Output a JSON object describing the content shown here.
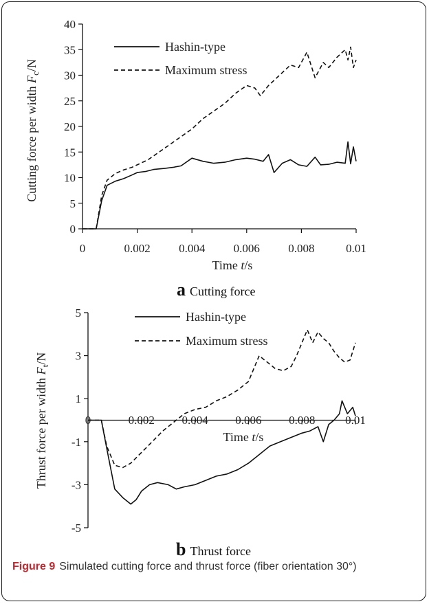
{
  "caption": {
    "label": "Figure 9",
    "text": "Simulated cutting force and thrust force (fiber orientation 30°)"
  },
  "chart_data": [
    {
      "type": "line",
      "panel_letter": "a",
      "panel_title": "Cutting force",
      "xlabel": "Time t/s",
      "ylabel": "Cutting force per width Fc/N",
      "xlim": [
        0,
        0.01
      ],
      "ylim": [
        0,
        40
      ],
      "x_ticks": [
        "0",
        "0.002",
        "0.004",
        "0.006",
        "0.008",
        "0.01"
      ],
      "y_ticks": [
        "0",
        "5",
        "10",
        "15",
        "20",
        "25",
        "30",
        "35",
        "40"
      ],
      "grid": false,
      "legend_placement": "top-left",
      "series": [
        {
          "name": "Hashin-type",
          "style": "solid",
          "x": [
            0,
            0.0005,
            0.0007,
            0.0009,
            0.0012,
            0.0015,
            0.0018,
            0.002,
            0.0023,
            0.0026,
            0.003,
            0.0033,
            0.0036,
            0.004,
            0.0044,
            0.0048,
            0.0052,
            0.0056,
            0.006,
            0.0063,
            0.0066,
            0.0068,
            0.007,
            0.0073,
            0.0076,
            0.0079,
            0.0082,
            0.0085,
            0.0087,
            0.009,
            0.0093,
            0.0096,
            0.0097,
            0.0098,
            0.0099,
            0.01
          ],
          "y": [
            0,
            0,
            5.5,
            8.5,
            9.3,
            9.8,
            10.5,
            11,
            11.2,
            11.6,
            11.8,
            12,
            12.3,
            13.8,
            13.2,
            12.8,
            13,
            13.5,
            13.8,
            13.6,
            13.2,
            14.5,
            11,
            12.8,
            13.5,
            12.5,
            12.2,
            14,
            12.5,
            12.6,
            13,
            12.8,
            17,
            12.7,
            16,
            13.2
          ]
        },
        {
          "name": "Maximum stress",
          "style": "dashed",
          "x": [
            0,
            0.0005,
            0.0007,
            0.0009,
            0.0012,
            0.0015,
            0.0018,
            0.002,
            0.0024,
            0.0028,
            0.0032,
            0.0036,
            0.004,
            0.0044,
            0.0048,
            0.0052,
            0.0056,
            0.006,
            0.0063,
            0.0065,
            0.0068,
            0.007,
            0.0073,
            0.0076,
            0.0079,
            0.0082,
            0.0085,
            0.0088,
            0.009,
            0.0093,
            0.0096,
            0.0097,
            0.0098,
            0.0099,
            0.01
          ],
          "y": [
            0,
            0,
            6.5,
            9.5,
            10.8,
            11.5,
            12,
            12.5,
            13.5,
            15,
            16.5,
            18,
            19.5,
            21.5,
            23,
            24.5,
            26.5,
            28,
            27.5,
            26,
            28,
            29,
            30.5,
            32,
            31.5,
            34.5,
            29.5,
            32.5,
            31.5,
            33.5,
            35,
            33,
            35.5,
            31.5,
            33
          ]
        }
      ]
    },
    {
      "type": "line",
      "panel_letter": "b",
      "panel_title": "Thrust force",
      "xlabel": "Time t/s",
      "ylabel": "Thrust  force per width Ft/N",
      "xlim": [
        0,
        0.01
      ],
      "ylim": [
        -5,
        5
      ],
      "x_ticks": [
        "0",
        "0.002",
        "0.004",
        "0.006",
        "0.008",
        "0.01"
      ],
      "y_ticks": [
        "-5",
        "-3",
        "-1",
        "1",
        "3",
        "5"
      ],
      "grid": false,
      "legend_placement": "top-left",
      "series": [
        {
          "name": "Hashin-type",
          "style": "solid",
          "x": [
            0,
            0.0005,
            0.0007,
            0.001,
            0.0013,
            0.0016,
            0.0018,
            0.002,
            0.0023,
            0.0026,
            0.003,
            0.0033,
            0.0036,
            0.004,
            0.0044,
            0.0048,
            0.0052,
            0.0056,
            0.006,
            0.0064,
            0.0068,
            0.0072,
            0.0076,
            0.008,
            0.0083,
            0.0086,
            0.0088,
            0.009,
            0.0092,
            0.0094,
            0.0095,
            0.0097,
            0.0099,
            0.01
          ],
          "y": [
            0,
            0,
            -1.3,
            -3.2,
            -3.6,
            -3.9,
            -3.7,
            -3.3,
            -3,
            -2.9,
            -3,
            -3.2,
            -3.1,
            -3,
            -2.8,
            -2.6,
            -2.5,
            -2.3,
            -2,
            -1.6,
            -1.2,
            -1,
            -0.8,
            -0.6,
            -0.5,
            -0.3,
            -1,
            -0.2,
            0,
            0.3,
            0.9,
            0.3,
            0.6,
            0.2
          ]
        },
        {
          "name": "Maximum stress",
          "style": "dashed",
          "x": [
            0,
            0.0005,
            0.0007,
            0.001,
            0.0013,
            0.0016,
            0.002,
            0.0024,
            0.0028,
            0.0032,
            0.0036,
            0.004,
            0.0044,
            0.0048,
            0.0052,
            0.0056,
            0.006,
            0.0062,
            0.0064,
            0.0066,
            0.0068,
            0.007,
            0.0073,
            0.0076,
            0.0078,
            0.008,
            0.0082,
            0.0084,
            0.0086,
            0.0088,
            0.009,
            0.0092,
            0.0094,
            0.0096,
            0.0098,
            0.01
          ],
          "y": [
            0,
            0,
            -1.2,
            -2.1,
            -2.2,
            -2,
            -1.5,
            -1,
            -0.5,
            -0.1,
            0.3,
            0.5,
            0.6,
            0.9,
            1.1,
            1.4,
            1.8,
            2.4,
            3,
            2.8,
            2.6,
            2.4,
            2.3,
            2.5,
            3,
            3.6,
            4.2,
            3.6,
            4.1,
            3.8,
            3.6,
            3.2,
            2.9,
            2.7,
            2.8,
            3.6
          ]
        }
      ]
    }
  ]
}
